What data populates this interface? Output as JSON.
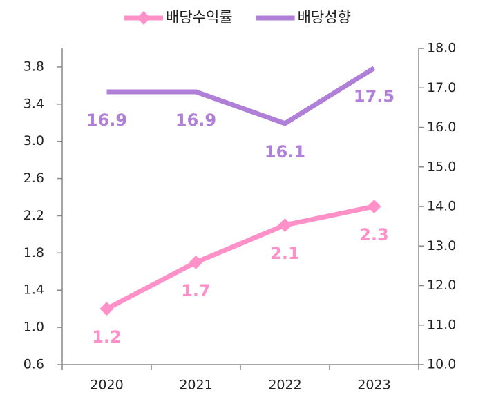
{
  "chart_data": {
    "type": "line",
    "categories": [
      "2020",
      "2021",
      "2022",
      "2023"
    ],
    "series": [
      {
        "name": "배당수익률",
        "color": "#ff90c8",
        "values": [
          1.2,
          1.7,
          2.1,
          2.3
        ],
        "marker": "diamond"
      },
      {
        "name": "배당성향",
        "color": "#b07fd8",
        "values": [
          16.9,
          16.9,
          16.1,
          17.5
        ],
        "axis": "y2"
      }
    ],
    "ylim": [
      0.6,
      4.0
    ],
    "yticks": [
      0.6,
      {
        "value": 1.0,
        "label": "1.0"
      },
      1.4,
      1.8,
      2.2,
      2.6,
      {
        "value": 3.0,
        "label": "3.0"
      },
      3.4,
      3.8
    ],
    "y2lim": [
      10.0,
      18.0
    ],
    "y2ticks": [
      {
        "value": 10,
        "label": "10.0"
      },
      {
        "value": 11,
        "label": "11.0"
      },
      {
        "value": 12,
        "label": "12.0"
      },
      {
        "value": 13,
        "label": "13.0"
      },
      {
        "value": 14,
        "label": "14.0"
      },
      {
        "value": 15,
        "label": "15.0"
      },
      {
        "value": 16,
        "label": "16.0"
      },
      {
        "value": 17,
        "label": "17.0"
      },
      {
        "value": 18,
        "label": "18.0"
      }
    ],
    "legend": "top"
  }
}
